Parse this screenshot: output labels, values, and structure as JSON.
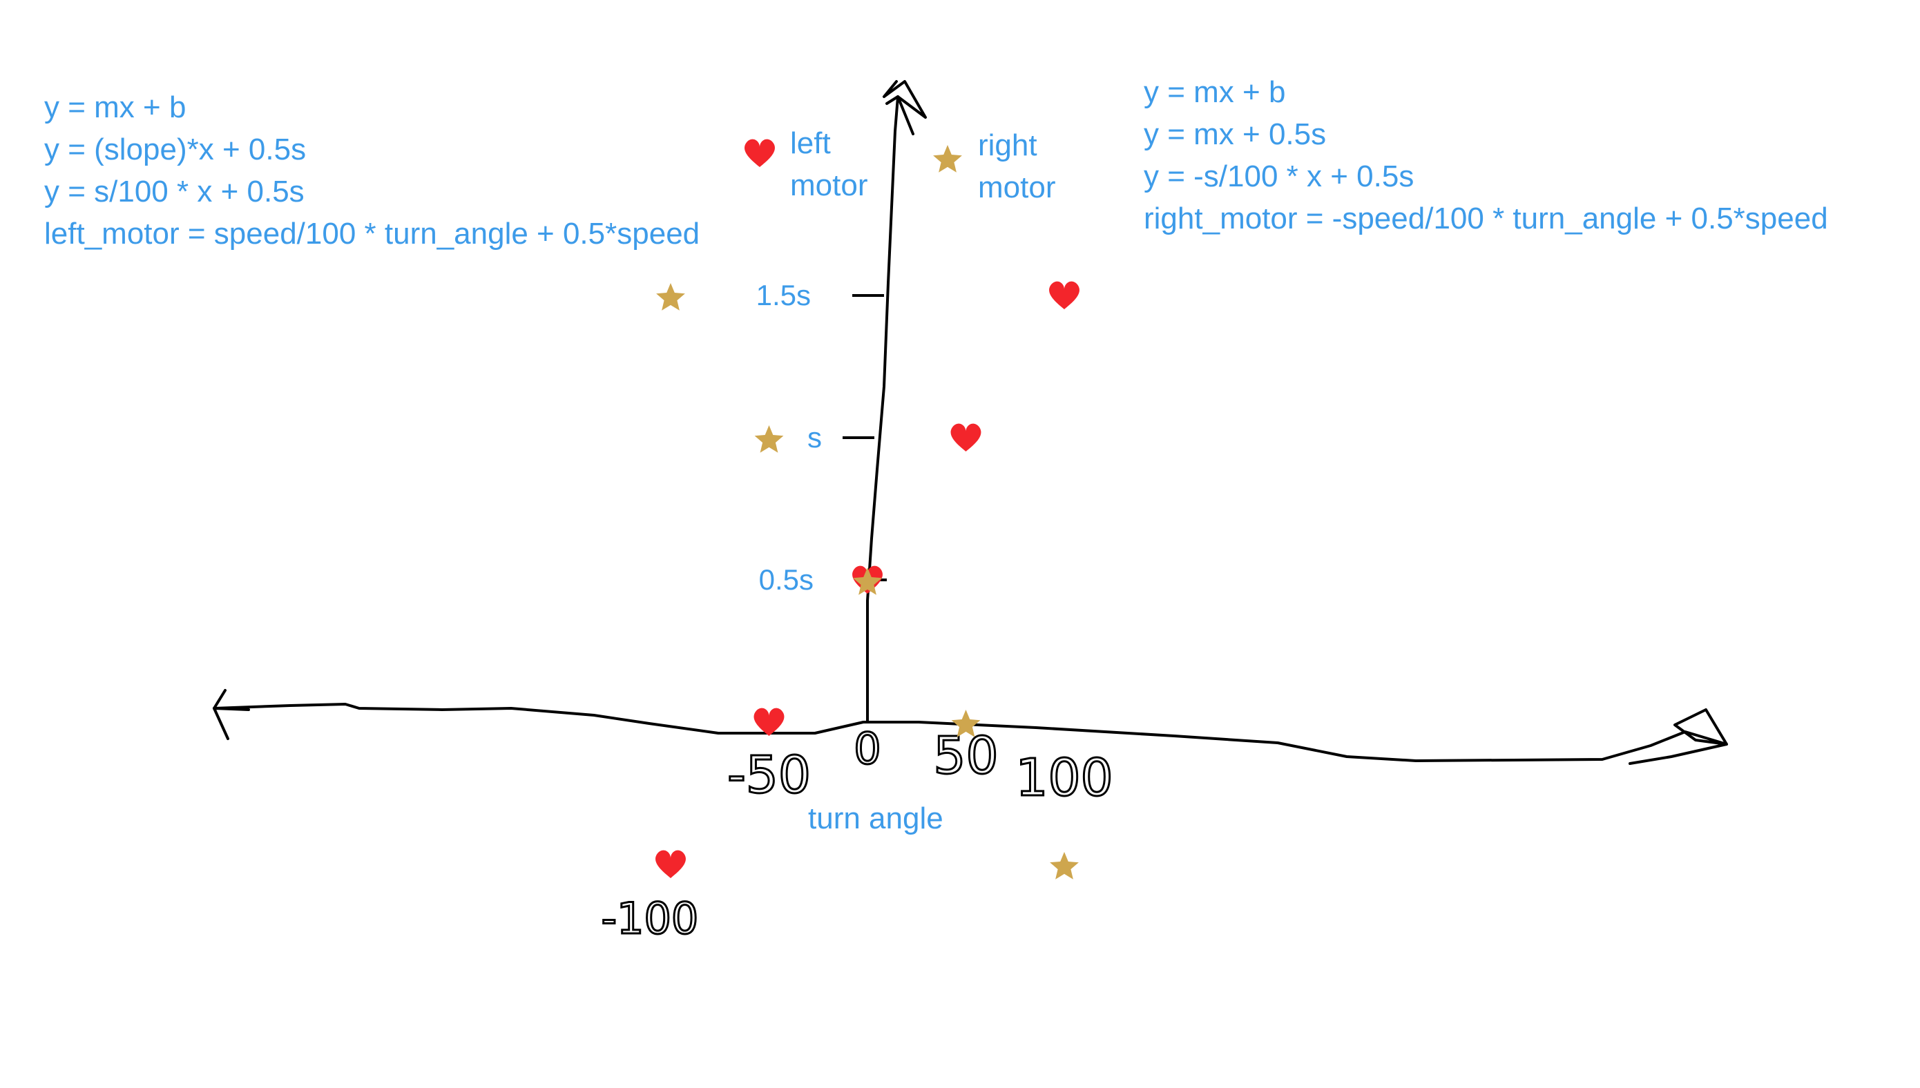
{
  "equations_left": [
    "y = mx + b",
    "y = (slope)*x + 0.5s",
    "y = s/100 * x + 0.5s",
    "left_motor = speed/100 * turn_angle + 0.5*speed"
  ],
  "equations_right": [
    "y = mx + b",
    "y = mx + 0.5s",
    "y = -s/100 * x + 0.5s",
    "right_motor = -speed/100 * turn_angle + 0.5*speed"
  ],
  "chart_data": {
    "type": "scatter",
    "xlabel": "turn angle",
    "x_tick_labels": [
      "-100",
      "-50",
      "0",
      "50",
      "100"
    ],
    "x_ticks": [
      -100,
      -50,
      0,
      50,
      100
    ],
    "y_tick_labels": [
      "0.5s",
      "s",
      "1.5s"
    ],
    "y_ticks": [
      0.5,
      1.0,
      1.5
    ],
    "legend": {
      "placement": "top-center",
      "entries": [
        "left motor",
        "right motor"
      ]
    },
    "colors": {
      "left motor": "#f3252b",
      "right motor": "#cea64e",
      "text": "#3d9be9"
    },
    "series": [
      {
        "name": "left motor",
        "marker": "heart",
        "x": [
          -100,
          -50,
          0,
          50,
          100
        ],
        "y": [
          -0.5,
          0.0,
          0.5,
          1.0,
          1.5
        ]
      },
      {
        "name": "right motor",
        "marker": "star",
        "x": [
          -100,
          -50,
          0,
          50,
          100
        ],
        "y": [
          1.5,
          1.0,
          0.5,
          0.0,
          -0.5
        ]
      }
    ]
  }
}
